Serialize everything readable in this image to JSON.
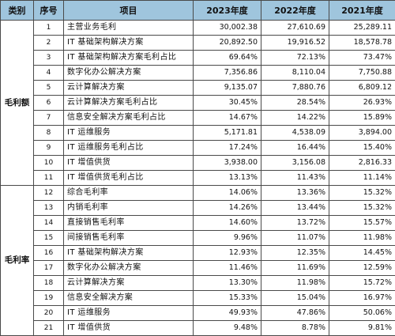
{
  "table": {
    "headers": [
      "类别",
      "序号",
      "项目",
      "2023年度",
      "2022年度",
      "2021年度"
    ],
    "groups": [
      {
        "category": "毛利额",
        "rows": [
          {
            "no": "1",
            "item": "主营业务毛利",
            "y2023": "30,002.38",
            "y2022": "27,610.69",
            "y2021": "25,289.11"
          },
          {
            "no": "2",
            "item": "IT 基础架构解决方案",
            "y2023": "20,892.50",
            "y2022": "19,916.52",
            "y2021": "18,578.78"
          },
          {
            "no": "3",
            "item": "IT 基础架构解决方案毛利占比",
            "y2023": "69.64%",
            "y2022": "72.13%",
            "y2021": "73.47%"
          },
          {
            "no": "4",
            "item": "数字化办公解决方案",
            "y2023": "7,356.86",
            "y2022": "8,110.04",
            "y2021": "7,750.88"
          },
          {
            "no": "5",
            "item": "云计算解决方案",
            "y2023": "9,135.07",
            "y2022": "7,880.76",
            "y2021": "6,809.12"
          },
          {
            "no": "6",
            "item": "云计算解决方案毛利占比",
            "y2023": "30.45%",
            "y2022": "28.54%",
            "y2021": "26.93%"
          },
          {
            "no": "7",
            "item": "信息安全解决方案毛利占比",
            "y2023": "14.67%",
            "y2022": "14.22%",
            "y2021": "15.89%"
          },
          {
            "no": "8",
            "item": "IT 运维服务",
            "y2023": "5,171.81",
            "y2022": "4,538.09",
            "y2021": "3,894.00"
          },
          {
            "no": "9",
            "item": "IT 运维服务毛利占比",
            "y2023": "17.24%",
            "y2022": "16.44%",
            "y2021": "15.40%"
          },
          {
            "no": "10",
            "item": "IT 增值供货",
            "y2023": "3,938.00",
            "y2022": "3,156.08",
            "y2021": "2,816.33"
          },
          {
            "no": "11",
            "item": "IT 增值供货毛利占比",
            "y2023": "13.13%",
            "y2022": "11.43%",
            "y2021": "11.14%"
          }
        ]
      },
      {
        "category": "毛利率",
        "rows": [
          {
            "no": "12",
            "item": "综合毛利率",
            "y2023": "14.06%",
            "y2022": "13.36%",
            "y2021": "15.32%"
          },
          {
            "no": "13",
            "item": "内销毛利率",
            "y2023": "14.26%",
            "y2022": "13.44%",
            "y2021": "15.32%"
          },
          {
            "no": "14",
            "item": "直接销售毛利率",
            "y2023": "14.60%",
            "y2022": "13.72%",
            "y2021": "15.57%"
          },
          {
            "no": "15",
            "item": "间接销售毛利率",
            "y2023": "9.96%",
            "y2022": "11.07%",
            "y2021": "11.98%"
          },
          {
            "no": "16",
            "item": "IT 基础架构解决方案",
            "y2023": "12.93%",
            "y2022": "12.35%",
            "y2021": "14.45%"
          },
          {
            "no": "17",
            "item": "数字化办公解决方案",
            "y2023": "11.46%",
            "y2022": "11.69%",
            "y2021": "12.59%"
          },
          {
            "no": "18",
            "item": "云计算解决方案",
            "y2023": "13.30%",
            "y2022": "11.98%",
            "y2021": "15.72%"
          },
          {
            "no": "19",
            "item": "信息安全解决方案",
            "y2023": "15.33%",
            "y2022": "15.04%",
            "y2021": "16.97%"
          },
          {
            "no": "20",
            "item": "IT 运维服务",
            "y2023": "49.93%",
            "y2022": "47.86%",
            "y2021": "50.06%"
          },
          {
            "no": "21",
            "item": "IT 增值供货",
            "y2023": "9.48%",
            "y2022": "8.78%",
            "y2021": "9.81%"
          }
        ]
      }
    ]
  },
  "colors": {
    "header_background": "#9fc5dd",
    "border": "#4a4a4a",
    "background": "#ffffff"
  }
}
